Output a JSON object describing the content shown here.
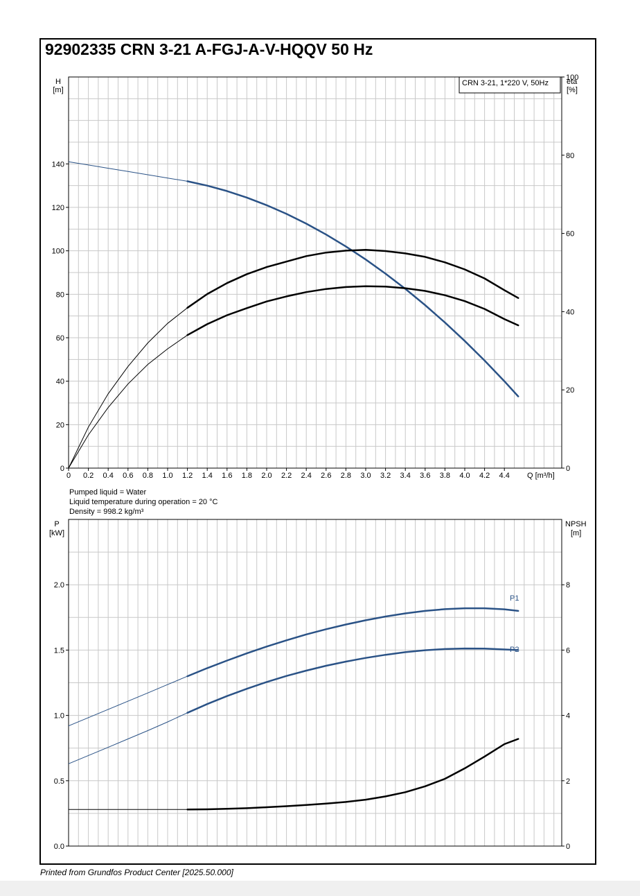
{
  "page": {
    "title": "92902335 CRN 3-21 A-FGJ-A-V-HQQV 50 Hz",
    "footer": "Printed from Grundfos Product Center [2025.50.000]"
  },
  "colors": {
    "curve_blue": "#2a5286",
    "curve_black": "#000000",
    "grid": "#c8c8c8"
  },
  "top_chart": {
    "legend": "CRN 3-21, 1*220 V, 50Hz",
    "left_axis_label": "H",
    "left_axis_unit": "[m]",
    "right_axis_label": "eta",
    "right_axis_unit": "[%]",
    "x_axis_label": "Q [m³/h]",
    "notes": [
      "Pumped liquid = Water",
      "Liquid temperature during operation = 20 °C",
      "Density = 998.2 kg/m³"
    ]
  },
  "bottom_chart": {
    "left_axis_label": "P",
    "left_axis_unit": "[kW]",
    "right_axis_label": "NPSH",
    "right_axis_unit": "[m]",
    "label_p1": "P1",
    "label_p2": "P2"
  },
  "chart_data": [
    {
      "type": "line",
      "title": "",
      "xlabel": "Q [m³/h]",
      "ylabel": "H [m]",
      "y2label": "eta [%]",
      "xlim": [
        0,
        4.95
      ],
      "ylim": [
        0,
        180
      ],
      "y2lim": [
        0,
        100
      ],
      "x_ticks": [
        "0",
        "0.2",
        "0.4",
        "0.6",
        "0.8",
        "1.0",
        "1.2",
        "1.4",
        "1.6",
        "1.8",
        "2.0",
        "2.2",
        "2.4",
        "2.6",
        "2.8",
        "3.0",
        "3.2",
        "3.4",
        "3.6",
        "3.8",
        "4.0",
        "4.2",
        "4.4"
      ],
      "y_ticks": [
        0,
        20,
        40,
        60,
        80,
        100,
        120,
        140
      ],
      "y2_ticks": [
        0,
        20,
        40,
        60,
        80,
        100
      ],
      "operating_range_start": 1.2,
      "grid": true,
      "legend": "top-right",
      "series": [
        {
          "axis": "left",
          "color": "#2a5286",
          "x": [
            0,
            0.2,
            0.4,
            0.6,
            0.8,
            1.0,
            1.2,
            1.4,
            1.6,
            1.8,
            2.0,
            2.2,
            2.4,
            2.6,
            2.8,
            3.0,
            3.2,
            3.4,
            3.6,
            3.8,
            4.0,
            4.2,
            4.4,
            4.54
          ],
          "y": [
            141,
            139.5,
            138,
            136.5,
            135,
            133.5,
            132,
            130,
            127.5,
            124.5,
            121,
            117,
            112.5,
            107.5,
            102,
            96,
            89.5,
            82.5,
            75,
            67,
            58.5,
            49.5,
            40,
            33
          ]
        },
        {
          "axis": "right",
          "color": "#000000",
          "x": [
            0,
            0.2,
            0.4,
            0.6,
            0.8,
            1.0,
            1.2,
            1.4,
            1.6,
            1.8,
            2.0,
            2.2,
            2.4,
            2.6,
            2.8,
            3.0,
            3.2,
            3.4,
            3.6,
            3.8,
            4.0,
            4.2,
            4.4,
            4.54
          ],
          "y": [
            0,
            10.5,
            19,
            26,
            32,
            37,
            41,
            44.5,
            47.3,
            49.6,
            51.4,
            52.8,
            54.2,
            55.1,
            55.6,
            55.8,
            55.5,
            54.9,
            54,
            52.6,
            50.8,
            48.5,
            45.5,
            43.5
          ]
        },
        {
          "axis": "right",
          "color": "#000000",
          "x": [
            0,
            0.2,
            0.4,
            0.6,
            0.8,
            1.0,
            1.2,
            1.4,
            1.6,
            1.8,
            2.0,
            2.2,
            2.4,
            2.6,
            2.8,
            3.0,
            3.2,
            3.4,
            3.6,
            3.8,
            4.0,
            4.2,
            4.4,
            4.54
          ],
          "y": [
            0,
            8.5,
            15.5,
            21.5,
            26.5,
            30.5,
            34,
            36.8,
            39.1,
            40.9,
            42.6,
            43.9,
            45,
            45.8,
            46.3,
            46.5,
            46.4,
            46,
            45.3,
            44.2,
            42.7,
            40.7,
            38.1,
            36.5
          ]
        }
      ]
    },
    {
      "type": "line",
      "title": "",
      "xlabel": "Q [m³/h]",
      "ylabel": "P [kW]",
      "y2label": "NPSH [m]",
      "xlim": [
        0,
        4.95
      ],
      "ylim": [
        0,
        2.5
      ],
      "y2lim": [
        0,
        10
      ],
      "y_ticks": [
        "0.0",
        "0.5",
        "1.0",
        "1.5",
        "2.0"
      ],
      "y2_ticks": [
        0,
        2,
        4,
        6,
        8
      ],
      "operating_range_start": 1.2,
      "grid": true,
      "series": [
        {
          "name": "P1",
          "axis": "left",
          "color": "#2a5286",
          "x": [
            0,
            0.2,
            0.4,
            0.6,
            0.8,
            1.0,
            1.2,
            1.4,
            1.6,
            1.8,
            2.0,
            2.2,
            2.4,
            2.6,
            2.8,
            3.0,
            3.2,
            3.4,
            3.6,
            3.8,
            4.0,
            4.2,
            4.4,
            4.54
          ],
          "y": [
            0.92,
            0.983,
            1.046,
            1.109,
            1.172,
            1.236,
            1.3,
            1.362,
            1.42,
            1.475,
            1.527,
            1.575,
            1.62,
            1.66,
            1.696,
            1.728,
            1.757,
            1.781,
            1.8,
            1.813,
            1.82,
            1.82,
            1.812,
            1.8
          ]
        },
        {
          "name": "P2",
          "axis": "left",
          "color": "#2a5286",
          "x": [
            0,
            0.2,
            0.4,
            0.6,
            0.8,
            1.0,
            1.2,
            1.4,
            1.6,
            1.8,
            2.0,
            2.2,
            2.4,
            2.6,
            2.8,
            3.0,
            3.2,
            3.4,
            3.6,
            3.8,
            4.0,
            4.2,
            4.4,
            4.54
          ],
          "y": [
            0.63,
            0.693,
            0.756,
            0.82,
            0.884,
            0.95,
            1.02,
            1.087,
            1.148,
            1.204,
            1.256,
            1.302,
            1.343,
            1.38,
            1.412,
            1.44,
            1.464,
            1.484,
            1.499,
            1.508,
            1.512,
            1.511,
            1.505,
            1.5
          ]
        },
        {
          "name": "NPSH",
          "axis": "right",
          "color": "#000000",
          "x": [
            0,
            0.2,
            0.4,
            0.6,
            0.8,
            1.0,
            1.2,
            1.4,
            1.6,
            1.8,
            2.0,
            2.2,
            2.4,
            2.6,
            2.8,
            3.0,
            3.2,
            3.4,
            3.6,
            3.8,
            4.0,
            4.2,
            4.4,
            4.54
          ],
          "y": [
            1.12,
            1.12,
            1.12,
            1.12,
            1.12,
            1.12,
            1.12,
            1.125,
            1.14,
            1.16,
            1.19,
            1.22,
            1.26,
            1.3,
            1.35,
            1.42,
            1.52,
            1.65,
            1.83,
            2.06,
            2.38,
            2.74,
            3.12,
            3.28
          ]
        }
      ]
    }
  ]
}
